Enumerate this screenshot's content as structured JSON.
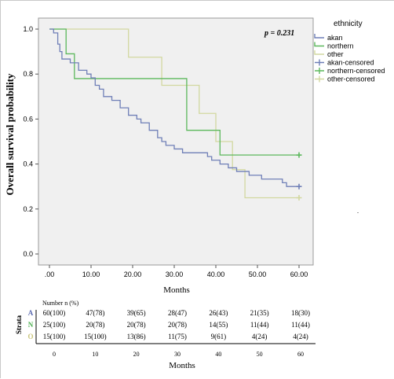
{
  "chart_data": {
    "type": "line",
    "step": true,
    "title": "",
    "annotation": "p = 0.231",
    "xlabel": "Months",
    "ylabel": "Overall survival probability",
    "xlim": [
      0,
      60
    ],
    "ylim": [
      0,
      1
    ],
    "x_ticks": [
      ".00",
      "10.00",
      "20.00",
      "30.00",
      "40.00",
      "50.00",
      "60.00"
    ],
    "y_ticks": [
      "0.0",
      "0.2",
      "0.4",
      "0.6",
      "0.8",
      "1.0"
    ],
    "legend": {
      "title": "ethnicity",
      "placement": "top-right",
      "entries": [
        "akan",
        "northern",
        "other",
        "akan-censored",
        "northern-censored",
        "other-censored"
      ]
    },
    "series": [
      {
        "name": "akan",
        "color": "#6f7fb7",
        "x": [
          0,
          1,
          2,
          2.5,
          3,
          5,
          7,
          9,
          10,
          11,
          12,
          13,
          15,
          17,
          19,
          21,
          22,
          24,
          26,
          27,
          28,
          30,
          32,
          38,
          39,
          41,
          43,
          45,
          48,
          51,
          53,
          56,
          57,
          60
        ],
        "y": [
          1.0,
          0.983,
          0.933,
          0.9,
          0.867,
          0.85,
          0.817,
          0.8,
          0.783,
          0.75,
          0.733,
          0.7,
          0.683,
          0.65,
          0.617,
          0.6,
          0.583,
          0.55,
          0.517,
          0.5,
          0.483,
          0.467,
          0.45,
          0.433,
          0.417,
          0.4,
          0.383,
          0.367,
          0.35,
          0.333,
          0.333,
          0.317,
          0.3,
          0.3
        ],
        "censored_at": [
          [
            60,
            0.3
          ]
        ]
      },
      {
        "name": "northern",
        "color": "#5cb85c",
        "x": [
          0,
          4,
          6,
          32,
          33,
          41,
          60
        ],
        "y": [
          1.0,
          0.89,
          0.78,
          0.78,
          0.55,
          0.44,
          0.44
        ],
        "censored_at": [
          [
            60,
            0.44
          ]
        ]
      },
      {
        "name": "other",
        "color": "#d2d8a0",
        "x": [
          0,
          19,
          27,
          36,
          40,
          44,
          47,
          60
        ],
        "y": [
          1.0,
          0.875,
          0.75,
          0.625,
          0.5,
          0.375,
          0.25,
          0.25
        ],
        "censored_at": [
          [
            60,
            0.25
          ]
        ]
      }
    ],
    "risk_table": {
      "header": "Number n (%)",
      "strata_label": "Strata",
      "xlabel": "Months",
      "times": [
        "0",
        "10",
        "20",
        "30",
        "40",
        "50",
        "60"
      ],
      "rows": [
        {
          "letter": "A",
          "color": "#5a6ab0",
          "values": [
            "60(100)",
            "47(78)",
            "39(65)",
            "28(47)",
            "26(43)",
            "21(35)",
            "18(30)"
          ]
        },
        {
          "letter": "N",
          "color": "#4caf50",
          "values": [
            "25(100)",
            "20(78)",
            "20(78)",
            "20(78)",
            "14(55)",
            "11(44)",
            "11(44)"
          ]
        },
        {
          "letter": "O",
          "color": "#c9c47a",
          "values": [
            "15(100)",
            "15(100)",
            "13(86)",
            "11(75)",
            "9(61)",
            "4(24)",
            "4(24)"
          ]
        }
      ]
    }
  }
}
